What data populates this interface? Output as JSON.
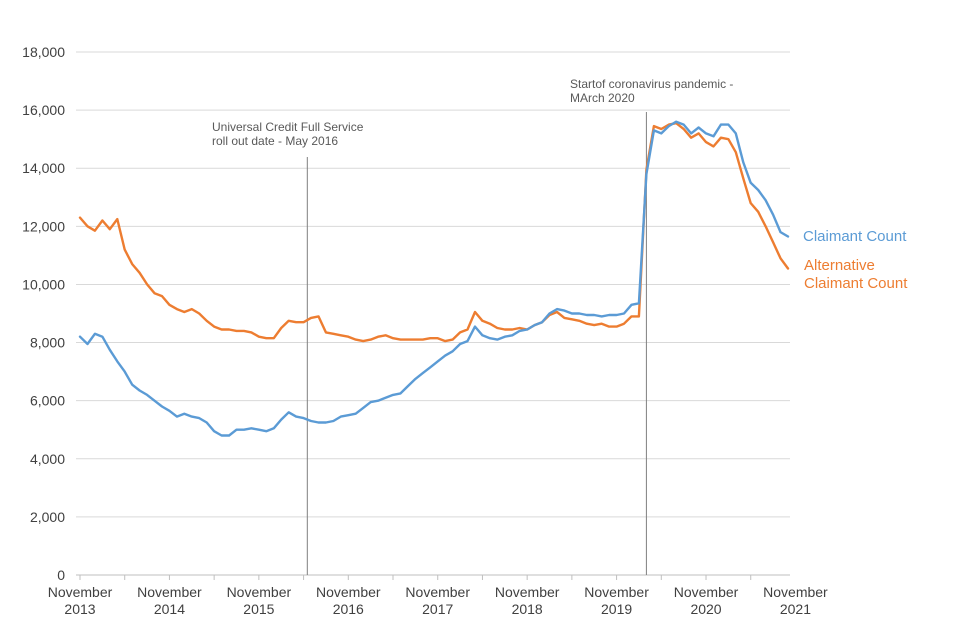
{
  "chart_data": {
    "type": "line",
    "title": "",
    "xlabel": "",
    "ylabel": "",
    "ylim": [
      0,
      18000
    ],
    "y_ticks": [
      "0",
      "2,000",
      "4,000",
      "6,000",
      "8,000",
      "10,000",
      "12,000",
      "14,000",
      "16,000",
      "18,000"
    ],
    "y_tick_values": [
      0,
      2000,
      4000,
      6000,
      8000,
      10000,
      12000,
      14000,
      16000,
      18000
    ],
    "x_ticks": [
      {
        "month": "November",
        "year": "2013",
        "index": 0
      },
      {
        "month": "November",
        "year": "2014",
        "index": 12
      },
      {
        "month": "November",
        "year": "2015",
        "index": 24
      },
      {
        "month": "November",
        "year": "2016",
        "index": 36
      },
      {
        "month": "November",
        "year": "2017",
        "index": 48
      },
      {
        "month": "November",
        "year": "2018",
        "index": 60
      },
      {
        "month": "November",
        "year": "2019",
        "index": 72
      },
      {
        "month": "November",
        "year": "2020",
        "index": 84
      },
      {
        "month": "November",
        "year": "2021",
        "index": 96
      }
    ],
    "x_start": "November 2013",
    "x_end": "November 2021",
    "series": [
      {
        "name": "Claimant Count",
        "legend_lines": [
          "Claimant Count"
        ],
        "color": "#5b9bd5",
        "values": [
          8200,
          7950,
          8300,
          8200,
          7750,
          7350,
          7000,
          6550,
          6350,
          6200,
          6000,
          5800,
          5650,
          5450,
          5550,
          5450,
          5400,
          5250,
          4950,
          4800,
          4800,
          5000,
          5000,
          5050,
          5000,
          4950,
          5050,
          5350,
          5600,
          5450,
          5400,
          5300,
          5250,
          5250,
          5300,
          5450,
          5500,
          5550,
          5750,
          5950,
          6000,
          6100,
          6200,
          6250,
          6500,
          6750,
          6950,
          7150,
          7350,
          7550,
          7700,
          7950,
          8050,
          8550,
          8250,
          8150,
          8100,
          8200,
          8250,
          8400,
          8450,
          8600,
          8700,
          9000,
          9150,
          9100,
          9000,
          9000,
          8950,
          8950,
          8900,
          8950,
          8950,
          9000,
          9300,
          9350,
          13800,
          15300,
          15200,
          15450,
          15600,
          15500,
          15200,
          15400,
          15200,
          15100,
          15500,
          15500,
          15200,
          14200,
          13500,
          13250,
          12900,
          12400,
          11800,
          11650
        ]
      },
      {
        "name": "Alternative Claimant Count",
        "legend_lines": [
          "Alternative",
          "Claimant Count"
        ],
        "color": "#ed7d31",
        "values": [
          12300,
          12000,
          11850,
          12200,
          11900,
          12250,
          11200,
          10700,
          10400,
          10000,
          9700,
          9600,
          9300,
          9150,
          9050,
          9150,
          9000,
          8750,
          8550,
          8450,
          8450,
          8400,
          8400,
          8350,
          8200,
          8150,
          8150,
          8500,
          8750,
          8700,
          8700,
          8850,
          8900,
          8350,
          8300,
          8250,
          8200,
          8100,
          8050,
          8100,
          8200,
          8250,
          8150,
          8100,
          8100,
          8100,
          8100,
          8150,
          8150,
          8050,
          8100,
          8350,
          8450,
          9050,
          8750,
          8650,
          8500,
          8450,
          8450,
          8500,
          8450,
          8600,
          8700,
          8950,
          9050,
          8850,
          8800,
          8750,
          8650,
          8600,
          8650,
          8550,
          8550,
          8650,
          8900,
          8900,
          13950,
          15450,
          15350,
          15500,
          15550,
          15350,
          15050,
          15200,
          14900,
          14750,
          15050,
          15000,
          14550,
          13650,
          12800,
          12500,
          12000,
          11450,
          10900,
          10550
        ]
      }
    ],
    "annotations": [
      {
        "index": 30.5,
        "lines": [
          "Universal  Credit  Full Service",
          "roll out date - May 2016"
        ]
      },
      {
        "index": 76,
        "lines": [
          "Startof coronavirus  pandemic  -",
          "MArch 2020"
        ]
      }
    ]
  }
}
